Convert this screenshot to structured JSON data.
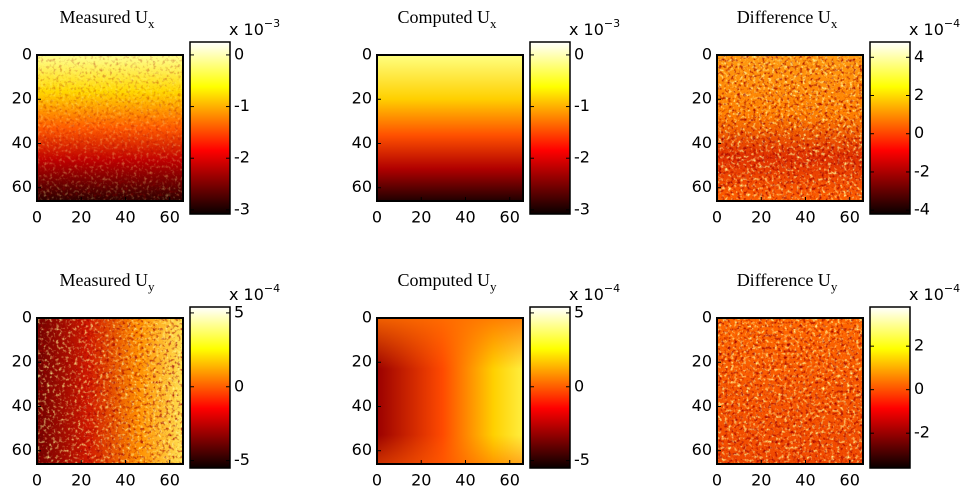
{
  "chart_data": [
    {
      "type": "heatmap",
      "title": "Measured U",
      "title_subscript": "x",
      "colorbar_scale": "x 10",
      "colorbar_exponent": "−3",
      "xlim": [
        0,
        66
      ],
      "ylim": [
        0,
        66
      ],
      "y_reversed": true,
      "xticks": [
        0,
        20,
        40,
        60
      ],
      "yticks": [
        0,
        20,
        40,
        60
      ],
      "clim": [
        -3.08,
        0.25
      ],
      "cticks": [
        0,
        -1,
        -2,
        -3
      ],
      "colormap": "hot"
    },
    {
      "type": "heatmap",
      "title": "Computed U",
      "title_subscript": "x",
      "colorbar_scale": "x 10",
      "colorbar_exponent": "−3",
      "xlim": [
        0,
        66
      ],
      "ylim": [
        0,
        66
      ],
      "y_reversed": true,
      "xticks": [
        0,
        20,
        40,
        60
      ],
      "yticks": [
        0,
        20,
        40,
        60
      ],
      "clim": [
        -3.08,
        0.25
      ],
      "cticks": [
        0,
        -1,
        -2,
        -3
      ],
      "colormap": "hot"
    },
    {
      "type": "heatmap",
      "title": "Difference U",
      "title_subscript": "x",
      "colorbar_scale": "x 10",
      "colorbar_exponent": "−4",
      "xlim": [
        0,
        66
      ],
      "ylim": [
        0,
        66
      ],
      "y_reversed": true,
      "xticks": [
        0,
        20,
        40,
        60
      ],
      "yticks": [
        0,
        20,
        40,
        60
      ],
      "clim": [
        -4.2,
        4.8
      ],
      "cticks": [
        4,
        2,
        0,
        -2,
        -4
      ],
      "colormap": "hot"
    },
    {
      "type": "heatmap",
      "title": "Measured U",
      "title_subscript": "y",
      "colorbar_scale": "x 10",
      "colorbar_exponent": "−4",
      "xlim": [
        0,
        66
      ],
      "ylim": [
        0,
        66
      ],
      "y_reversed": true,
      "xticks": [
        0,
        20,
        40,
        60
      ],
      "yticks": [
        0,
        20,
        40,
        60
      ],
      "clim": [
        -5.5,
        5.4
      ],
      "cticks": [
        5,
        0,
        -5
      ],
      "colormap": "hot"
    },
    {
      "type": "heatmap",
      "title": "Computed U",
      "title_subscript": "y",
      "colorbar_scale": "x 10",
      "colorbar_exponent": "−4",
      "xlim": [
        0,
        66
      ],
      "ylim": [
        0,
        66
      ],
      "y_reversed": true,
      "xticks": [
        0,
        20,
        40,
        60
      ],
      "yticks": [
        0,
        20,
        40,
        60
      ],
      "clim": [
        -5.5,
        5.4
      ],
      "cticks": [
        5,
        0,
        -5
      ],
      "colormap": "hot"
    },
    {
      "type": "heatmap",
      "title": "Difference U",
      "title_subscript": "y",
      "colorbar_scale": "x 10",
      "colorbar_exponent": "−4",
      "xlim": [
        0,
        66
      ],
      "ylim": [
        0,
        66
      ],
      "y_reversed": true,
      "xticks": [
        0,
        20,
        40,
        60
      ],
      "yticks": [
        0,
        20,
        40,
        60
      ],
      "clim": [
        -3.6,
        3.8
      ],
      "cticks": [
        2,
        0,
        -2
      ],
      "colormap": "hot"
    }
  ]
}
